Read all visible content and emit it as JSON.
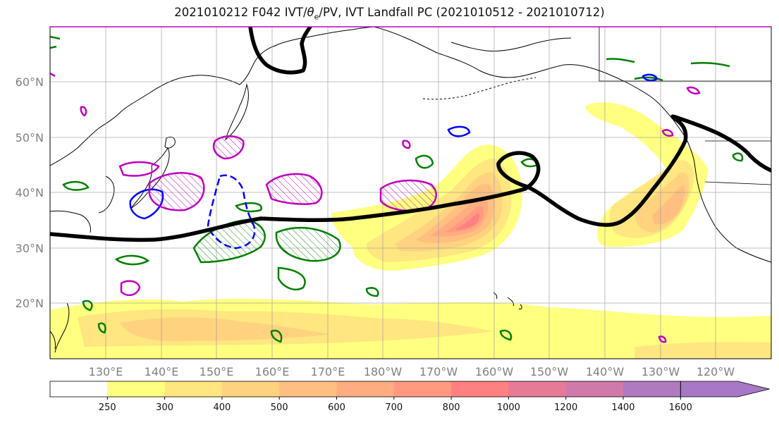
{
  "title": {
    "prefix": "2021010212 F042 IVT/",
    "theta": "θ",
    "theta_sub": "e",
    "suffix": "/PV, IVT Landfall PC (2021010512 - 2021010712)"
  },
  "map": {
    "projection": "PlateCarree",
    "lon_range_deg_east": [
      120,
      250
    ],
    "lat_range_deg": [
      10,
      70
    ],
    "gridlines": true,
    "coastlines": true
  },
  "axes": {
    "lat_labels": [
      "60°N",
      "50°N",
      "40°N",
      "30°N",
      "20°N"
    ],
    "lon_labels": [
      "130°E",
      "140°E",
      "150°E",
      "160°E",
      "170°E",
      "180°W",
      "170°W",
      "160°W",
      "150°W",
      "140°W",
      "130°W",
      "120°W"
    ]
  },
  "colorbar": {
    "levels": [
      "250",
      "300",
      "400",
      "500",
      "600",
      "700",
      "800",
      "1000",
      "1200",
      "1400",
      "1600"
    ],
    "colors": [
      "#ffffff",
      "#ffff80",
      "#ffe680",
      "#ffd280",
      "#ffbf80",
      "#ffad80",
      "#ff9980",
      "#ff8080",
      "#e77a96",
      "#d07aab",
      "#b07ac0",
      "#a678c5"
    ],
    "extend": "max"
  },
  "contours": {
    "ivt_landfall_pc_color": "#000000",
    "theta_e_color": "#008000",
    "pv_color": "#c000c0",
    "negative_color": "#0000ff"
  }
}
